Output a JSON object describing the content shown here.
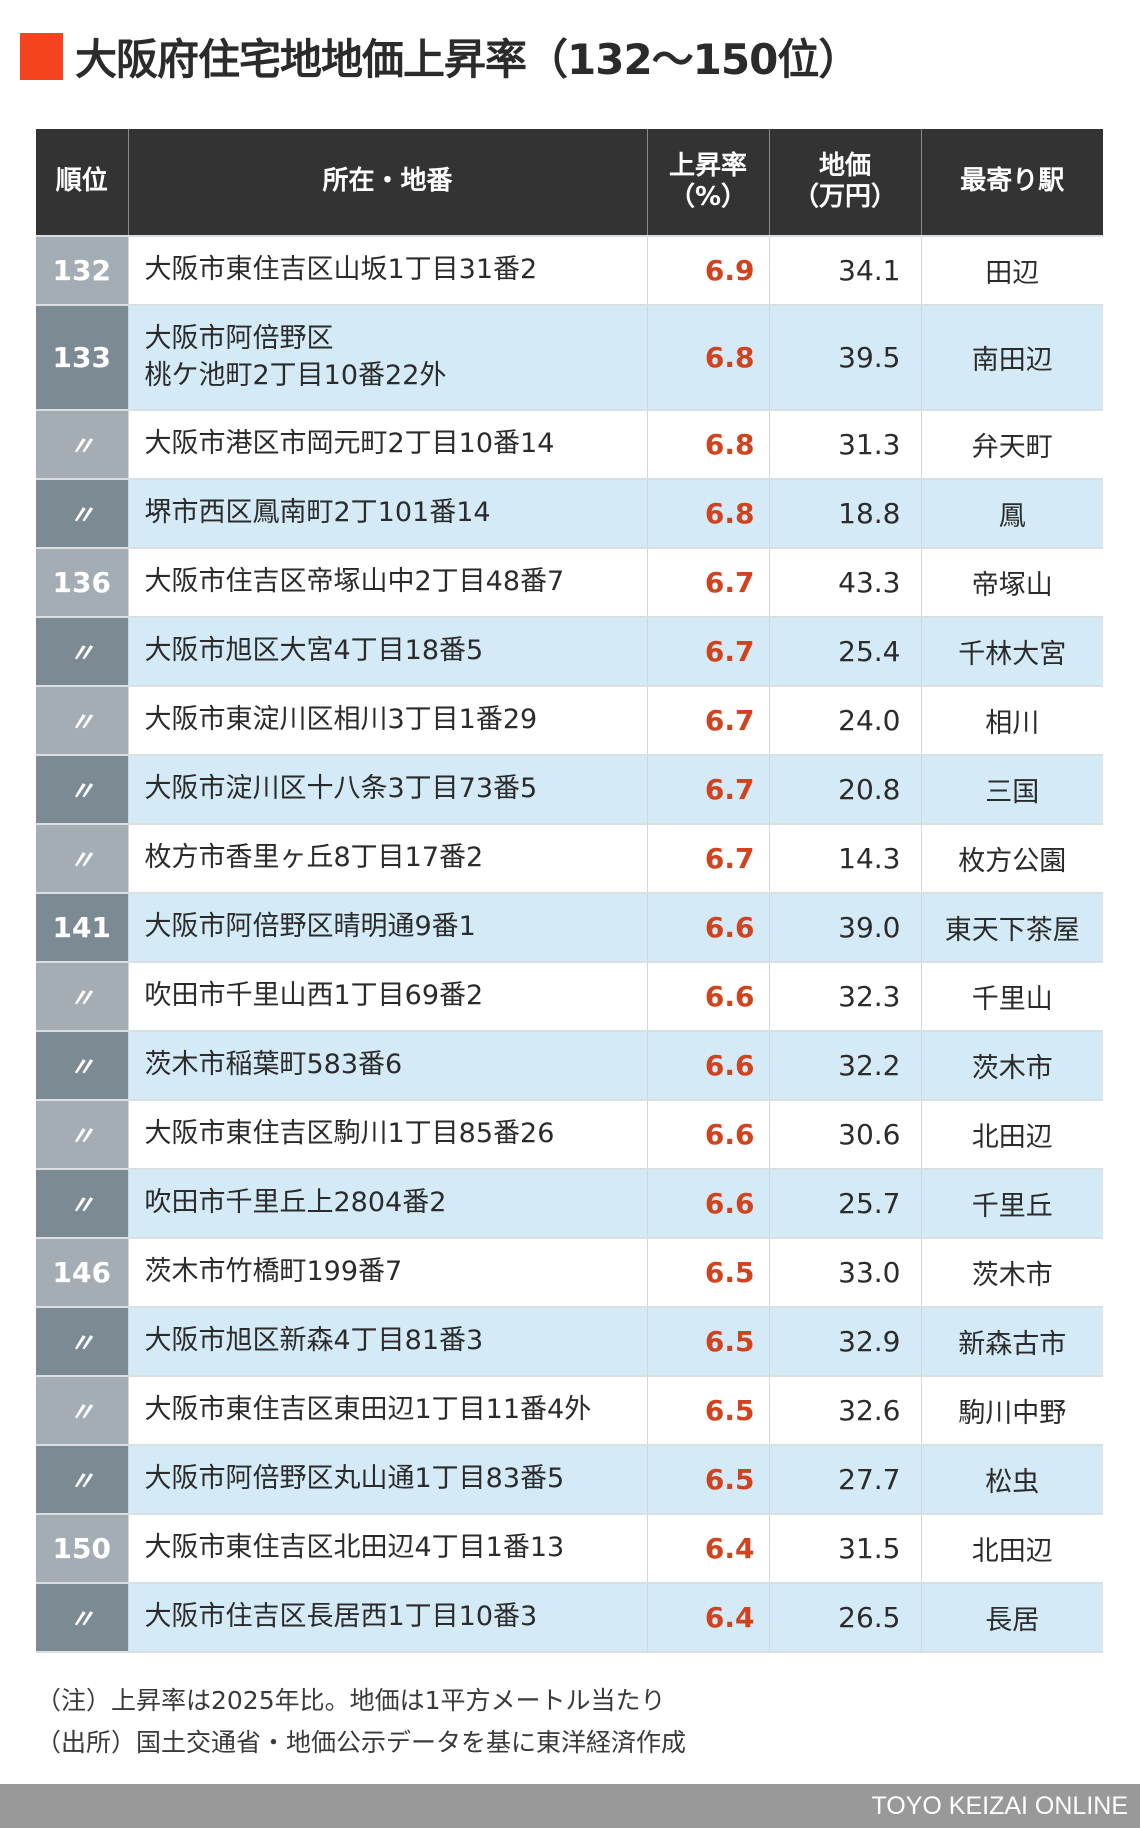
{
  "title": {
    "accent_color": "#f3431c",
    "text": "大阪府住宅地地価上昇率（132〜150位）"
  },
  "table": {
    "headers": {
      "rank": "順位",
      "address": "所在・地番",
      "rate_line1": "上昇率",
      "rate_line2": "（%）",
      "price_line1": "地価",
      "price_line2": "（万円）",
      "station": "最寄り駅"
    },
    "colors": {
      "header_bg": "#333333",
      "rate_text": "#d1431f",
      "row_alt_bg": "#d4ebf7",
      "rank_light_bg": "#a3adb3",
      "rank_dark_bg": "#7c8b93"
    },
    "rows": [
      {
        "rank": "132",
        "address_line1": "大阪市東住吉区山坂1丁目31番2",
        "address_line2": "",
        "rate": "6.9",
        "price": "34.1",
        "station": "田辺"
      },
      {
        "rank": "133",
        "address_line1": "大阪市阿倍野区",
        "address_line2": "桃ケ池町2丁目10番22外",
        "rate": "6.8",
        "price": "39.5",
        "station": "南田辺"
      },
      {
        "rank": "〃",
        "address_line1": "大阪市港区市岡元町2丁目10番14",
        "address_line2": "",
        "rate": "6.8",
        "price": "31.3",
        "station": "弁天町"
      },
      {
        "rank": "〃",
        "address_line1": "堺市西区鳳南町2丁101番14",
        "address_line2": "",
        "rate": "6.8",
        "price": "18.8",
        "station": "鳳"
      },
      {
        "rank": "136",
        "address_line1": "大阪市住吉区帝塚山中2丁目48番7",
        "address_line2": "",
        "rate": "6.7",
        "price": "43.3",
        "station": "帝塚山"
      },
      {
        "rank": "〃",
        "address_line1": "大阪市旭区大宮4丁目18番5",
        "address_line2": "",
        "rate": "6.7",
        "price": "25.4",
        "station": "千林大宮"
      },
      {
        "rank": "〃",
        "address_line1": "大阪市東淀川区相川3丁目1番29",
        "address_line2": "",
        "rate": "6.7",
        "price": "24.0",
        "station": "相川"
      },
      {
        "rank": "〃",
        "address_line1": "大阪市淀川区十八条3丁目73番5",
        "address_line2": "",
        "rate": "6.7",
        "price": "20.8",
        "station": "三国"
      },
      {
        "rank": "〃",
        "address_line1": "枚方市香里ヶ丘8丁目17番2",
        "address_line2": "",
        "rate": "6.7",
        "price": "14.3",
        "station": "枚方公園"
      },
      {
        "rank": "141",
        "address_line1": "大阪市阿倍野区晴明通9番1",
        "address_line2": "",
        "rate": "6.6",
        "price": "39.0",
        "station": "東天下茶屋"
      },
      {
        "rank": "〃",
        "address_line1": "吹田市千里山西1丁目69番2",
        "address_line2": "",
        "rate": "6.6",
        "price": "32.3",
        "station": "千里山"
      },
      {
        "rank": "〃",
        "address_line1": "茨木市稲葉町583番6",
        "address_line2": "",
        "rate": "6.6",
        "price": "32.2",
        "station": "茨木市"
      },
      {
        "rank": "〃",
        "address_line1": "大阪市東住吉区駒川1丁目85番26",
        "address_line2": "",
        "rate": "6.6",
        "price": "30.6",
        "station": "北田辺"
      },
      {
        "rank": "〃",
        "address_line1": "吹田市千里丘上2804番2",
        "address_line2": "",
        "rate": "6.6",
        "price": "25.7",
        "station": "千里丘"
      },
      {
        "rank": "146",
        "address_line1": "茨木市竹橋町199番7",
        "address_line2": "",
        "rate": "6.5",
        "price": "33.0",
        "station": "茨木市"
      },
      {
        "rank": "〃",
        "address_line1": "大阪市旭区新森4丁目81番3",
        "address_line2": "",
        "rate": "6.5",
        "price": "32.9",
        "station": "新森古市"
      },
      {
        "rank": "〃",
        "address_line1": "大阪市東住吉区東田辺1丁目11番4外",
        "address_line2": "",
        "rate": "6.5",
        "price": "32.6",
        "station": "駒川中野"
      },
      {
        "rank": "〃",
        "address_line1": "大阪市阿倍野区丸山通1丁目83番5",
        "address_line2": "",
        "rate": "6.5",
        "price": "27.7",
        "station": "松虫"
      },
      {
        "rank": "150",
        "address_line1": "大阪市東住吉区北田辺4丁目1番13",
        "address_line2": "",
        "rate": "6.4",
        "price": "31.5",
        "station": "北田辺"
      },
      {
        "rank": "〃",
        "address_line1": "大阪市住吉区長居西1丁目10番3",
        "address_line2": "",
        "rate": "6.4",
        "price": "26.5",
        "station": "長居"
      }
    ]
  },
  "notes": {
    "note": "（注）上昇率は2025年比。地価は1平方メートル当たり",
    "source": "（出所）国土交通省・地価公示データを基に東洋経済作成"
  },
  "footer": {
    "brand": "TOYO KEIZAI ONLINE"
  }
}
